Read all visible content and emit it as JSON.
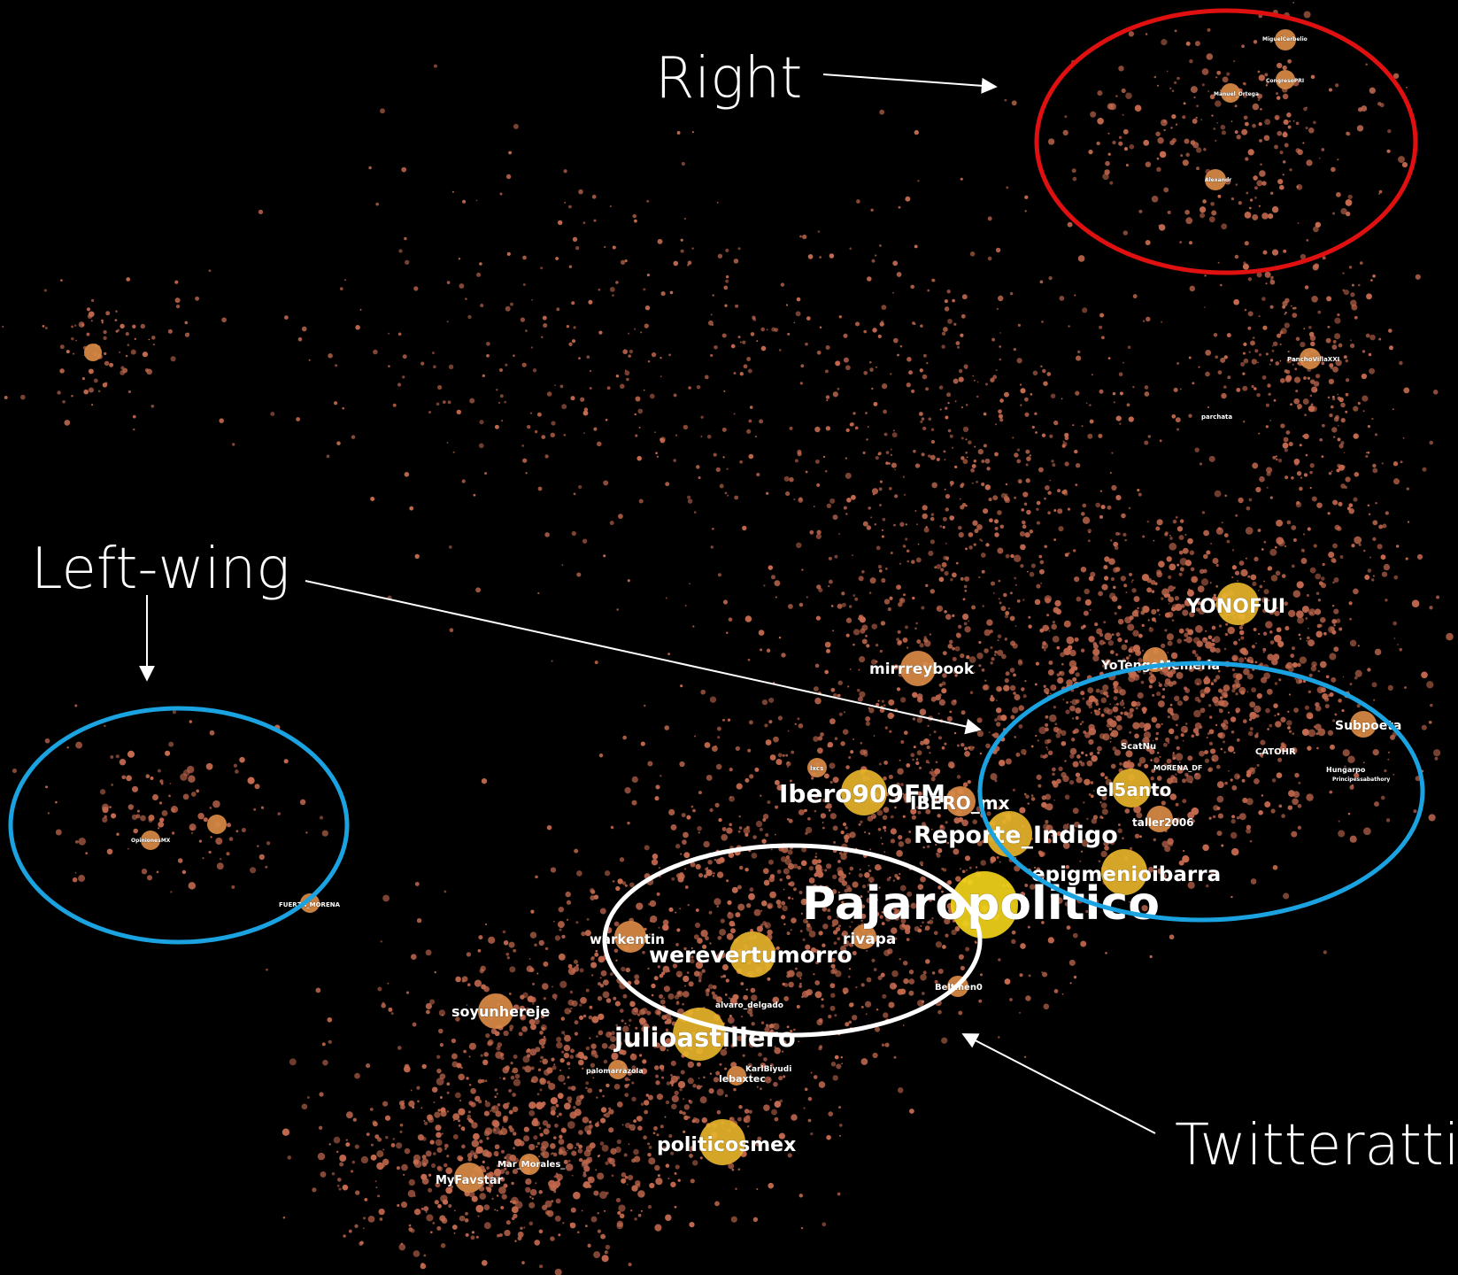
{
  "annotations": {
    "right": "Right",
    "left_wing": "Left-wing",
    "twitteratti": "Twitteratti"
  },
  "colors": {
    "background": "#000000",
    "small_node": "#c46a4f",
    "mid_node": "#d98a45",
    "hub_node": "#e6b32a",
    "top_hub": "#f2d31a",
    "right_cluster": "#e01010",
    "left_wing_cluster": "#1aa3e0",
    "twitteratti_cluster": "#ffffff",
    "arrow": "#ffffff"
  },
  "nodes": [
    {
      "id": "Pajaropolitico",
      "label": "Pajaropolitico",
      "kind": "top_hub"
    },
    {
      "id": "werevertumorro",
      "label": "werevertumorro",
      "kind": "hub"
    },
    {
      "id": "julioastillero",
      "label": "julioastillero",
      "kind": "hub"
    },
    {
      "id": "Ibero909FM",
      "label": "Ibero909FM",
      "kind": "hub"
    },
    {
      "id": "IBERO_mx",
      "label": "IBERO_mx",
      "kind": "mid"
    },
    {
      "id": "Reporte_Indigo",
      "label": "Reporte_Indigo",
      "kind": "hub"
    },
    {
      "id": "epigmenioibarra",
      "label": "epigmenioibarra",
      "kind": "hub"
    },
    {
      "id": "el5anto",
      "label": "el5anto",
      "kind": "hub"
    },
    {
      "id": "YONOFUI",
      "label": "YONOFUI",
      "kind": "hub"
    },
    {
      "id": "mirrreybook",
      "label": "mirrreybook",
      "kind": "mid"
    },
    {
      "id": "politicosmex",
      "label": "politicosmex",
      "kind": "hub"
    },
    {
      "id": "soyunhereje",
      "label": "soyunhereje",
      "kind": "mid"
    },
    {
      "id": "warkentin",
      "label": "warkentin",
      "kind": "mid"
    },
    {
      "id": "rivapa",
      "label": "rivapa",
      "kind": "mid"
    },
    {
      "id": "MyFavstar",
      "label": "MyFavstar",
      "kind": "mid"
    },
    {
      "id": "Subpoeta",
      "label": "Subpoeta",
      "kind": "mid"
    },
    {
      "id": "YoTengoMemeria",
      "label": "YoTengoMemeria",
      "kind": "mid"
    },
    {
      "id": "taller2006",
      "label": "taller2006",
      "kind": "mid"
    },
    {
      "id": "Beltmen0",
      "label": "Beltmen0",
      "kind": "small"
    },
    {
      "id": "alvaro_delgado",
      "label": "alvaro_delgado",
      "kind": "small"
    },
    {
      "id": "palomarrazola",
      "label": "palomarrazola",
      "kind": "small"
    },
    {
      "id": "lebaxtec",
      "label": "lebaxtec",
      "kind": "small"
    },
    {
      "id": "KarlBiyudi",
      "label": "KarlBiyudi",
      "kind": "small"
    },
    {
      "id": "Mar_Morales",
      "label": "Mar_Morales_",
      "kind": "small"
    },
    {
      "id": "ScatNu",
      "label": "ScatNu",
      "kind": "small"
    },
    {
      "id": "MORENA_DF",
      "label": "MORENA_DF",
      "kind": "small"
    },
    {
      "id": "CATOHR",
      "label": "CATOHR",
      "kind": "small"
    },
    {
      "id": "FUERZA_MORENA",
      "label": "FUERZA_MORENA",
      "kind": "small"
    },
    {
      "id": "OpinionesMX",
      "label": "OpinionesMX",
      "kind": "small"
    },
    {
      "id": "Hungarpo",
      "label": "Hungarpo",
      "kind": "small"
    },
    {
      "id": "Principessabathory",
      "label": "Principessabathory",
      "kind": "small"
    },
    {
      "id": "PanchoVillaXX",
      "label": "PanchoVillaXXI",
      "kind": "small"
    },
    {
      "id": "parchata",
      "label": "parchata",
      "kind": "small"
    },
    {
      "id": "MiguelCerbelio",
      "label": "MiguelCerbelio",
      "kind": "small"
    },
    {
      "id": "CongresoPRI",
      "label": "CongresoPRI",
      "kind": "small"
    },
    {
      "id": "Alexandr",
      "label": "Alexandr",
      "kind": "small"
    },
    {
      "id": "Manuel_Ortega",
      "label": "Manuel_Ortega",
      "kind": "small"
    },
    {
      "id": "lxcs",
      "label": "lxcs",
      "kind": "small"
    }
  ]
}
